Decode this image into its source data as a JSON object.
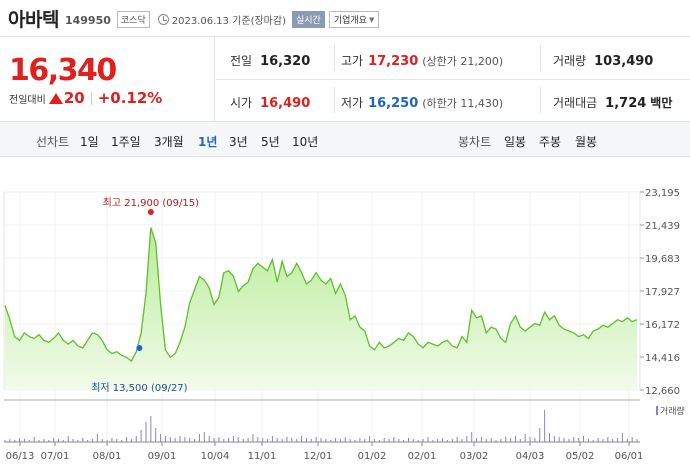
{
  "header": {
    "name": "아바텍",
    "code": "149950",
    "market": "코스닥",
    "date": "2023.06.13 기준(장마감)",
    "realtime": "실시간",
    "info": "기업개요"
  },
  "price": {
    "current": "16,340",
    "change_label": "전일대비",
    "change": "20",
    "change_pct": "+0.12%"
  },
  "stats": {
    "prev_label": "전일",
    "prev_value": "16,320",
    "high_label": "고가",
    "high_value": "17,230",
    "high_sub": "(상한가 21,200)",
    "volume_label": "거래량",
    "volume_value": "103,490",
    "open_label": "시가",
    "open_value": "16,490",
    "low_label": "저가",
    "low_value": "16,250",
    "low_sub": "(하한가 11,430)",
    "amount_label": "거래대금",
    "amount_value": "1,724",
    "amount_unit": "백만"
  },
  "tabs": {
    "line_label": "선차트",
    "line_items": [
      "1일",
      "1주일",
      "3개월",
      "1년",
      "3년",
      "5년",
      "10년"
    ],
    "active": "1년",
    "candle_label": "봉차트",
    "candle_items": [
      "일봉",
      "주봉",
      "월봉"
    ]
  },
  "chart_data": {
    "type": "area",
    "x_ticks": [
      "06/13",
      "07/01",
      "08/01",
      "09/01",
      "10/04",
      "11/01",
      "12/01",
      "01/02",
      "02/01",
      "03/02",
      "04/03",
      "05/02",
      "06/01"
    ],
    "y_ticks": [
      "23,195",
      "21,439",
      "19,683",
      "17,927",
      "16,172",
      "14,416",
      "12,660"
    ],
    "ylim": [
      12660,
      23195
    ],
    "high_annotation": "최고 21,900 (09/15)",
    "low_annotation": "최저 13,500 (09/27)",
    "volume_legend": "거래량",
    "values": [
      17150,
      16400,
      15500,
      15300,
      15700,
      15500,
      15400,
      15600,
      15300,
      15200,
      15400,
      15700,
      15300,
      15100,
      15300,
      15000,
      14900,
      15300,
      15700,
      15600,
      15300,
      14800,
      14600,
      14700,
      14500,
      14400,
      14200,
      14700,
      15700,
      17800,
      21300,
      20500,
      17200,
      14800,
      14400,
      14600,
      15200,
      16000,
      17300,
      18000,
      18700,
      18500,
      18100,
      17200,
      17600,
      18900,
      19000,
      18700,
      17900,
      18200,
      18400,
      19100,
      19400,
      19200,
      19000,
      19600,
      18400,
      19500,
      18700,
      18900,
      19400,
      18900,
      18300,
      18500,
      18900,
      18500,
      18300,
      18600,
      17800,
      18300,
      17700,
      16400,
      16600,
      16000,
      15800,
      15000,
      14800,
      15200,
      14900,
      15000,
      15200,
      15400,
      15300,
      15700,
      15500,
      15100,
      14900,
      15200,
      15100,
      15000,
      15200,
      15300,
      15000,
      14900,
      15500,
      15200,
      16900,
      16500,
      16600,
      15700,
      16000,
      15900,
      15400,
      15200,
      16200,
      16600,
      16000,
      15800,
      16000,
      16200,
      16100,
      16800,
      16400,
      16600,
      16100,
      15900,
      15800,
      15700,
      15500,
      15600,
      15400,
      15800,
      15900,
      16100,
      16000,
      16200,
      16400,
      16300,
      16500,
      16300,
      16400
    ]
  }
}
